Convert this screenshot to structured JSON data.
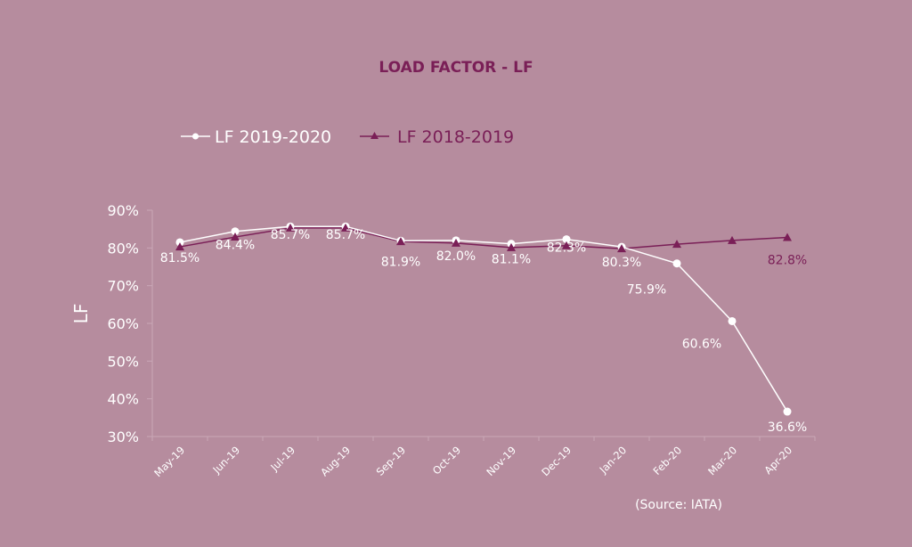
{
  "chart_data": {
    "type": "line",
    "title": "LOAD FACTOR - LF",
    "xlabel": "",
    "ylabel": "LF",
    "ylim": [
      30,
      90
    ],
    "yticks": [
      "30%",
      "40%",
      "50%",
      "60%",
      "70%",
      "80%",
      "90%"
    ],
    "ytick_values": [
      30,
      40,
      50,
      60,
      70,
      80,
      90
    ],
    "grid": false,
    "legend_position": "top-left",
    "categories": [
      "May-19",
      "Jun-19",
      "Jul-19",
      "Aug-19",
      "Sep-19",
      "Oct-19",
      "Nov-19",
      "Dec-19",
      "Jan-20",
      "Feb-20",
      "Mar-20",
      "Apr-20"
    ],
    "series": [
      {
        "name": "LF 2019-2020",
        "marker": "circle",
        "color": "#ffffff",
        "values": [
          81.5,
          84.4,
          85.7,
          85.7,
          81.9,
          82.0,
          81.1,
          82.3,
          80.3,
          75.9,
          60.6,
          36.6
        ],
        "labels": [
          "81.5%",
          "84.4%",
          "85.7%",
          "85.7%",
          "81.9%",
          "82.0%",
          "81.1%",
          "82.3%",
          "80.3%",
          "75.9%",
          "60.6%",
          "36.6%"
        ]
      },
      {
        "name": "LF 2018-2019",
        "marker": "triangle",
        "color": "#7a1f57",
        "values": [
          80.3,
          82.9,
          85.3,
          85.3,
          81.7,
          81.3,
          80.1,
          80.6,
          79.8,
          81.0,
          82.0,
          82.8
        ],
        "labels": [
          "",
          "",
          "",
          "",
          "",
          "",
          "",
          "",
          "",
          "",
          "",
          "82.8%"
        ]
      }
    ],
    "annotations": [
      "(Source: IATA)"
    ]
  },
  "colors": {
    "background": "#b68c9e",
    "accent": "#7a1f57",
    "axis": "#c9a7b6"
  }
}
